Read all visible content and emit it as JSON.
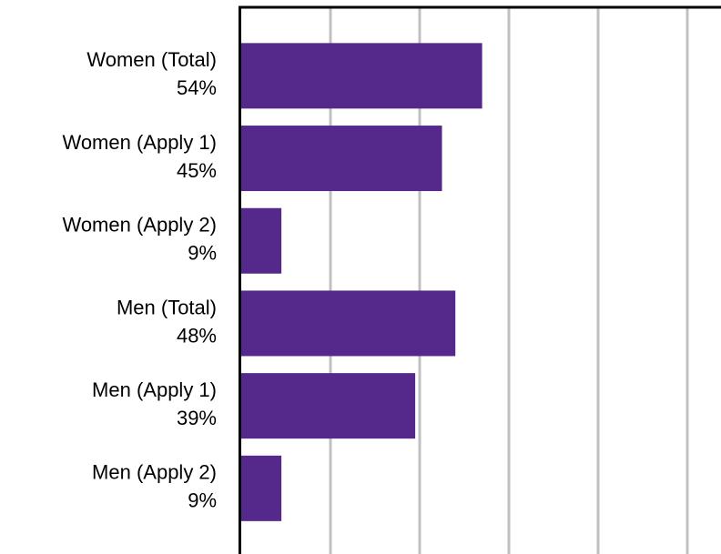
{
  "chart_data": {
    "type": "bar",
    "orientation": "horizontal",
    "categories": [
      "Women (Total)",
      "Women (Apply 1)",
      "Women (Apply 2)",
      "Men (Total)",
      "Men (Apply 1)",
      "Men (Apply 2)"
    ],
    "values": [
      54,
      45,
      9,
      48,
      39,
      9
    ],
    "value_labels": [
      "54%",
      "45%",
      "9%",
      "48%",
      "39%",
      "9%"
    ],
    "color": "#55298c",
    "xlim": [
      0,
      100
    ],
    "xticks": [
      0,
      20,
      40,
      60,
      80,
      100
    ],
    "grid": true
  }
}
